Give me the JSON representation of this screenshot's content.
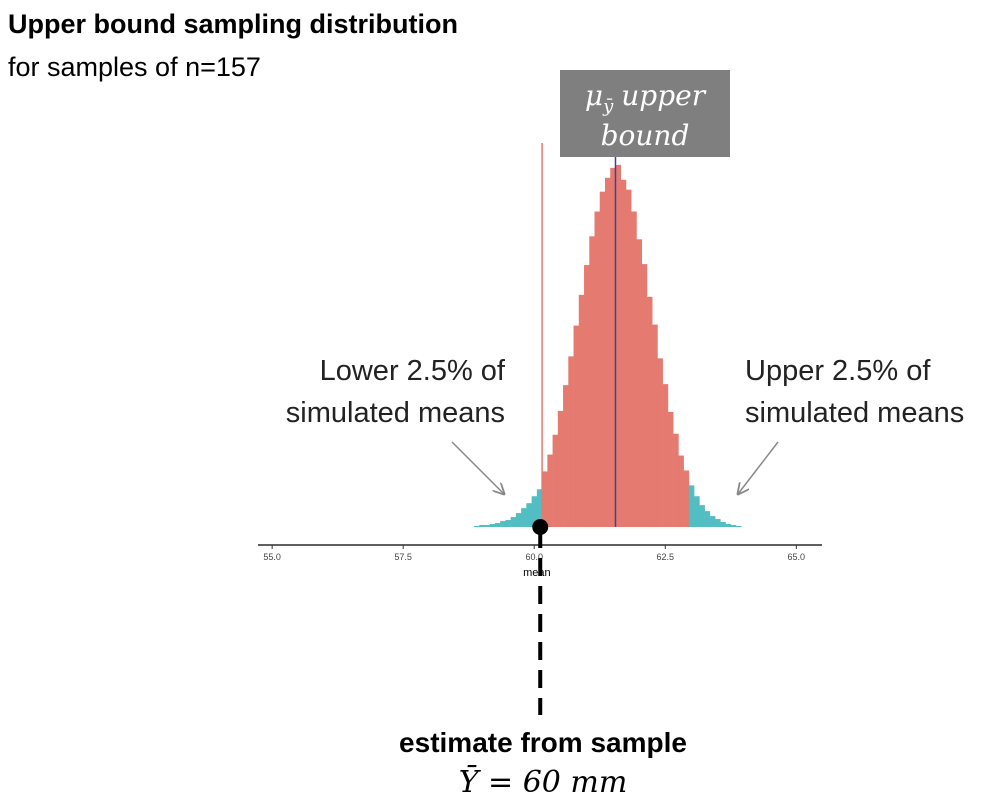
{
  "chart_data": {
    "type": "histogram",
    "title": "Upper bound sampling distribution",
    "subtitle": "for samples of n=157",
    "x_label": "mean",
    "bins": [
      58.85,
      58.95,
      59.05,
      59.15,
      59.25,
      59.35,
      59.45,
      59.55,
      59.65,
      59.75,
      59.85,
      59.95,
      60.05,
      60.15,
      60.25,
      60.35,
      60.45,
      60.55,
      60.65,
      60.75,
      60.85,
      60.95,
      61.05,
      61.15,
      61.25,
      61.35,
      61.45,
      61.55,
      61.65,
      61.75,
      61.85,
      61.95,
      62.05,
      62.15,
      62.25,
      62.35,
      62.45,
      62.55,
      62.65,
      62.75,
      62.85,
      62.95,
      63.05,
      63.15,
      63.25,
      63.35,
      63.45,
      63.55,
      63.65,
      63.75,
      63.85,
      63.95
    ],
    "counts": [
      1,
      2,
      2,
      3,
      4,
      6,
      7,
      10,
      14,
      19,
      24,
      31,
      38,
      56,
      73,
      93,
      117,
      143,
      172,
      203,
      234,
      264,
      293,
      318,
      338,
      352,
      362,
      365,
      350,
      340,
      318,
      290,
      265,
      232,
      204,
      170,
      144,
      116,
      94,
      72,
      57,
      42,
      31,
      22,
      16,
      11,
      8,
      5,
      3,
      2,
      1
    ],
    "bar_colors": [
      "#52bdc2",
      "#52bdc2",
      "#52bdc2",
      "#52bdc2",
      "#52bdc2",
      "#52bdc2",
      "#52bdc2",
      "#52bdc2",
      "#52bdc2",
      "#52bdc2",
      "#52bdc2",
      "#52bdc2",
      "#52bdc2",
      "#e57a71",
      "#e57a71",
      "#e57a71",
      "#e57a71",
      "#e57a71",
      "#e57a71",
      "#e57a71",
      "#e57a71",
      "#e57a71",
      "#e57a71",
      "#e57a71",
      "#e57a71",
      "#e57a71",
      "#e57a71",
      "#e57a71",
      "#e57a71",
      "#e57a71",
      "#e57a71",
      "#e57a71",
      "#e57a71",
      "#e57a71",
      "#e57a71",
      "#e57a71",
      "#e57a71",
      "#e57a71",
      "#e57a71",
      "#e57a71",
      "#e57a71",
      "#52bdc2",
      "#52bdc2",
      "#52bdc2",
      "#52bdc2",
      "#52bdc2",
      "#52bdc2",
      "#52bdc2",
      "#52bdc2",
      "#52bdc2",
      "#52bdc2"
    ],
    "xlim": [
      54.73,
      65.49
    ],
    "xticks": [
      {
        "value": 55,
        "label": "55.0"
      },
      {
        "value": 57.5,
        "label": "57.5"
      },
      {
        "value": 60,
        "label": "60.0"
      },
      {
        "value": 62.5,
        "label": "62.5"
      },
      {
        "value": 65,
        "label": "65.0"
      }
    ],
    "ylim": [
      0,
      380
    ],
    "reference_lines": [
      {
        "value": 60.15,
        "color": "#e57a71"
      },
      {
        "value": 61.55,
        "color": "#3d4394"
      }
    ],
    "upper_bound_label": {
      "symbol": "μ",
      "subscript": "ȳ",
      "lines": [
        "upper",
        "bound"
      ]
    },
    "annotations": [
      {
        "lines": [
          "Lower 2.5% of",
          "simulated means"
        ]
      },
      {
        "lines": [
          "Upper 2.5% of",
          "simulated means"
        ]
      }
    ],
    "estimate": {
      "title": "estimate from sample",
      "value": 60,
      "value_label": "Ȳ = 60 mm"
    }
  }
}
